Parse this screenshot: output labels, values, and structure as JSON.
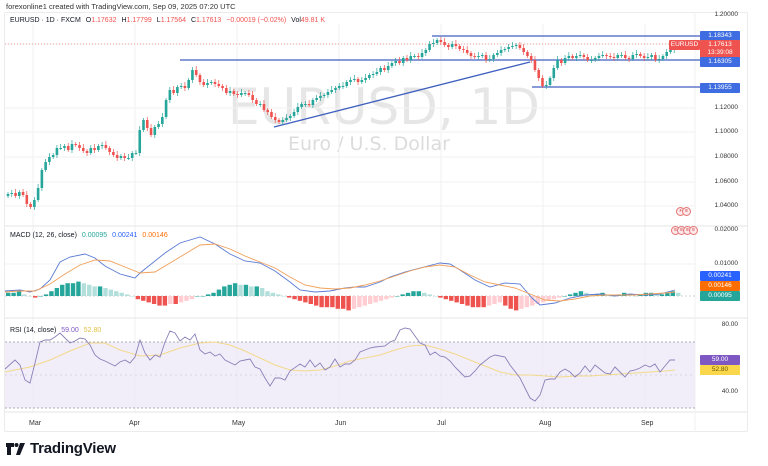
{
  "credit": "forexonline1 created with TradingView.com, Sep 09, 2025 07:20 UTC",
  "symbol": {
    "name": "EURUSD · 1D · FXCM",
    "open_label": "O",
    "open": "1.17632",
    "high_label": "H",
    "high": "1.17799",
    "low_label": "L",
    "low": "1.17564",
    "close_label": "C",
    "close": "1.17613",
    "change": "−0.00019 (−0.02%)",
    "volume_label": "Vol",
    "volume": "49.81 K"
  },
  "watermark": {
    "ticker": "EURUSD, 1D",
    "description": "Euro / U.S. Dollar"
  },
  "price_axis": {
    "labels": [
      "1.20000",
      "1.12000",
      "1.10000",
      "1.08000",
      "1.06000",
      "1.04000",
      "0.02000"
    ],
    "tags": {
      "resistance_top": "1.18343",
      "symbol_label": "EURUSD",
      "last_price": "1.17613",
      "countdown": "13:39:08",
      "support_mid": "1.16305",
      "support_low": "1.13955"
    }
  },
  "macd": {
    "title": "MACD (12, 26, close)",
    "histogram": "0.00095",
    "macd": "0.00241",
    "signal": "0.00146",
    "axis_labels": [
      "0.01000"
    ],
    "tags": [
      "0.00241",
      "0.00146",
      "0.00095"
    ]
  },
  "rsi": {
    "title": "RSI (14, close)",
    "value": "59.00",
    "ma": "52.80",
    "axis_labels": [
      "80.00",
      "40.00"
    ],
    "tags": [
      "59.00",
      "52.80"
    ]
  },
  "time_axis": [
    "Mar",
    "Apr",
    "May",
    "Jun",
    "Jul",
    "Aug",
    "Sep"
  ],
  "brand": "TradingView",
  "colors": {
    "up": "#26a69a",
    "down": "#ef5350",
    "line": "#3f5fbf",
    "macd_line": "#2962ff",
    "signal_line": "#ff6d00",
    "rsi_line": "#7e57c2",
    "rsi_ma": "#f9c74f",
    "rsi_band": "#ede7f6"
  },
  "chart_data": [
    {
      "type": "candlestick",
      "title": "EURUSD · 1D · FXCM",
      "xlabel": "",
      "ylabel": "Price",
      "x": [
        "Mar",
        "Apr",
        "May",
        "Jun",
        "Jul",
        "Aug",
        "Sep"
      ],
      "ylim": [
        1.02,
        1.2
      ],
      "approx_close_by_month": [
        1.045,
        1.08,
        1.13,
        1.135,
        1.175,
        1.16,
        1.176
      ],
      "horizontal_levels": [
        1.18343,
        1.16305,
        1.13955
      ],
      "trendline": {
        "from": [
          "May",
          1.108
        ],
        "to": [
          "Jul end",
          1.162
        ]
      },
      "last": {
        "open": 1.17632,
        "high": 1.17799,
        "low": 1.17564,
        "close": 1.17613
      }
    },
    {
      "type": "bar+line",
      "title": "MACD (12, 26, close)",
      "series": [
        {
          "name": "Histogram",
          "last": 0.00095
        },
        {
          "name": "MACD",
          "last": 0.00241
        },
        {
          "name": "Signal",
          "last": 0.00146
        }
      ],
      "ylim": [
        -0.01,
        0.02
      ]
    },
    {
      "type": "line",
      "title": "RSI (14, close)",
      "series": [
        {
          "name": "RSI",
          "last": 59.0
        },
        {
          "name": "RSI MA",
          "last": 52.8
        }
      ],
      "bands": [
        70,
        50,
        30
      ],
      "ylim": [
        25,
        85
      ]
    }
  ]
}
